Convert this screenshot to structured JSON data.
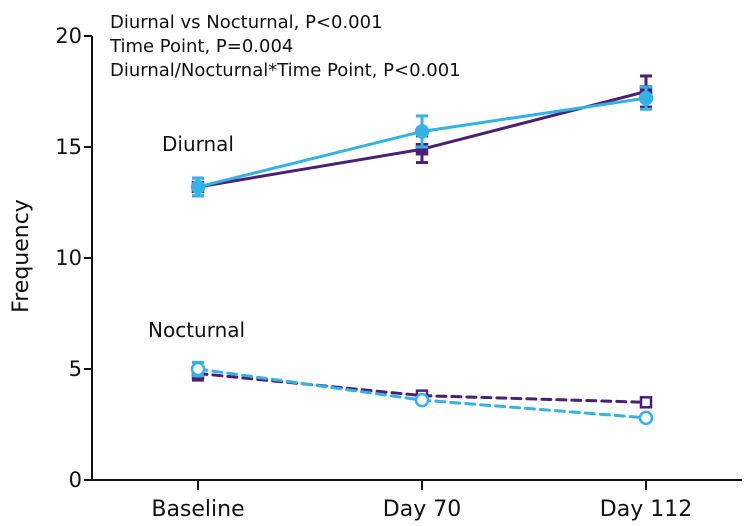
{
  "chart_data": {
    "type": "line",
    "title": "",
    "xlabel": "",
    "ylabel": "Frequency",
    "categories": [
      "Baseline",
      "Day 70",
      "Day 112"
    ],
    "ylim": [
      0,
      20
    ],
    "yticks": [
      0,
      5,
      10,
      15,
      20
    ],
    "grid": false,
    "legend": "none",
    "annotations": [
      "Diurnal vs Nocturnal, P<0.001",
      "Time Point, P=0.004",
      "Diurnal/Nocturnal*Time Point, P<0.001"
    ],
    "group_labels": {
      "diurnal": "Diurnal",
      "nocturnal": "Nocturnal"
    },
    "series": [
      {
        "group": "diurnal",
        "marker": "square",
        "fill": "solid",
        "line": "solid",
        "color": "#4b1f75",
        "values": [
          13.2,
          14.9,
          17.5
        ],
        "errors": [
          0.4,
          0.6,
          0.7
        ]
      },
      {
        "group": "diurnal",
        "marker": "circle",
        "fill": "solid",
        "line": "solid",
        "color": "#33b2e6",
        "values": [
          13.2,
          15.7,
          17.2
        ],
        "errors": [
          0.4,
          0.7,
          0.5
        ]
      },
      {
        "group": "nocturnal",
        "marker": "square",
        "fill": "open",
        "line": "dashed",
        "color": "#4b1f75",
        "values": [
          4.8,
          3.8,
          3.5
        ],
        "errors": [
          0.3,
          0,
          0
        ]
      },
      {
        "group": "nocturnal",
        "marker": "circle",
        "fill": "open",
        "line": "dashed",
        "color": "#33b2e6",
        "values": [
          5.0,
          3.6,
          2.8
        ],
        "errors": [
          0.3,
          0,
          0
        ]
      }
    ]
  }
}
